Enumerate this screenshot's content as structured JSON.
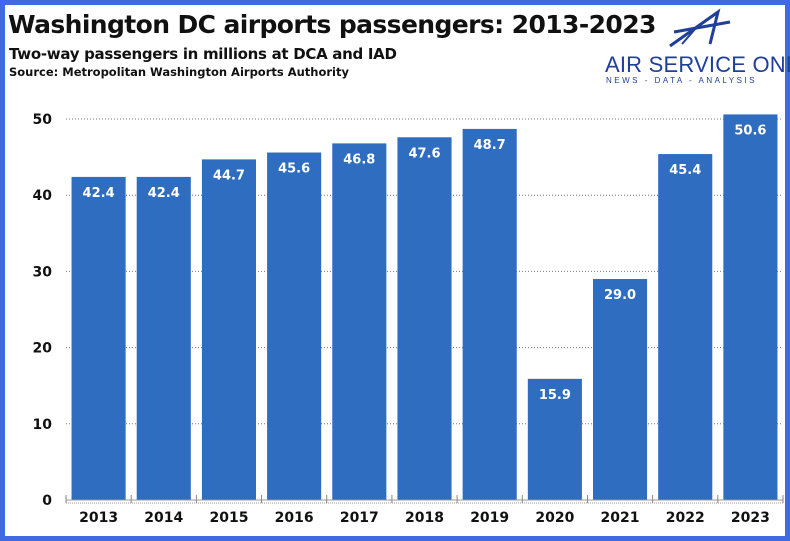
{
  "title": "Washington DC airports passengers: 2013-2023",
  "subtitle": "Two-way passengers in millions at DCA and IAD",
  "source": "Source: Metropolitan Washington Airports Authority",
  "logo": {
    "name": "AIR SERVICE ONE",
    "tagline": "NEWS - DATA - ANALYSIS"
  },
  "colors": {
    "bar": "#2e6dbf",
    "border": "#4169e1",
    "label": "#ffffff"
  },
  "chart_data": {
    "type": "bar",
    "categories": [
      "2013",
      "2014",
      "2015",
      "2016",
      "2017",
      "2018",
      "2019",
      "2020",
      "2021",
      "2022",
      "2023"
    ],
    "values": [
      42.4,
      42.4,
      44.7,
      45.6,
      46.8,
      47.6,
      48.7,
      15.9,
      29.0,
      45.4,
      50.6
    ],
    "labels": [
      "42.4",
      "42.4",
      "44.7",
      "45.6",
      "46.8",
      "47.6",
      "48.7",
      "15.9",
      "29.0",
      "45.4",
      "50.6"
    ],
    "ylim": [
      0,
      50
    ],
    "yticks": [
      0,
      10,
      20,
      30,
      40,
      50
    ],
    "grid": true,
    "data_labels": "inside-top"
  }
}
